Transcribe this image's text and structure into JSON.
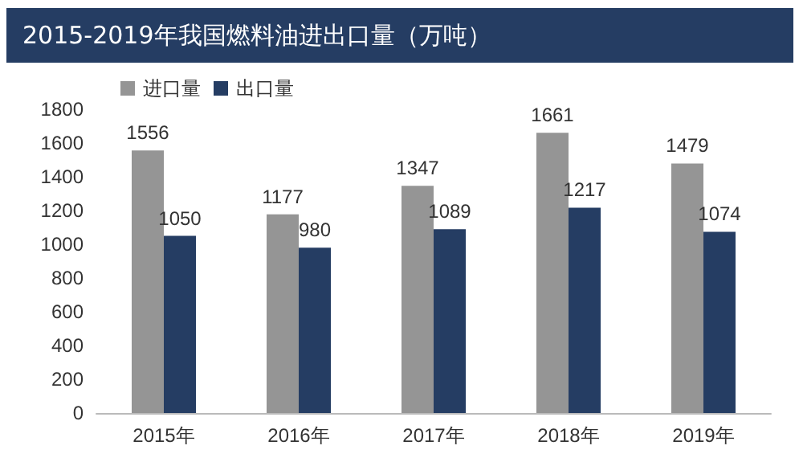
{
  "chart_data": {
    "type": "bar",
    "title": "2015-2019年我国燃料油进出口量（万吨）",
    "categories": [
      "2015年",
      "2016年",
      "2017年",
      "2018年",
      "2019年"
    ],
    "series": [
      {
        "name": "进口量",
        "color": "#959595",
        "values": [
          1556,
          1177,
          1347,
          1661,
          1479
        ]
      },
      {
        "name": "出口量",
        "color": "#253d63",
        "values": [
          1050,
          980,
          1089,
          1217,
          1074
        ]
      }
    ],
    "ylim": [
      0,
      1800
    ],
    "yticks": [
      0,
      200,
      400,
      600,
      800,
      1000,
      1200,
      1400,
      1600,
      1800
    ],
    "grid": false,
    "legend": "top left",
    "data_labels": true
  }
}
